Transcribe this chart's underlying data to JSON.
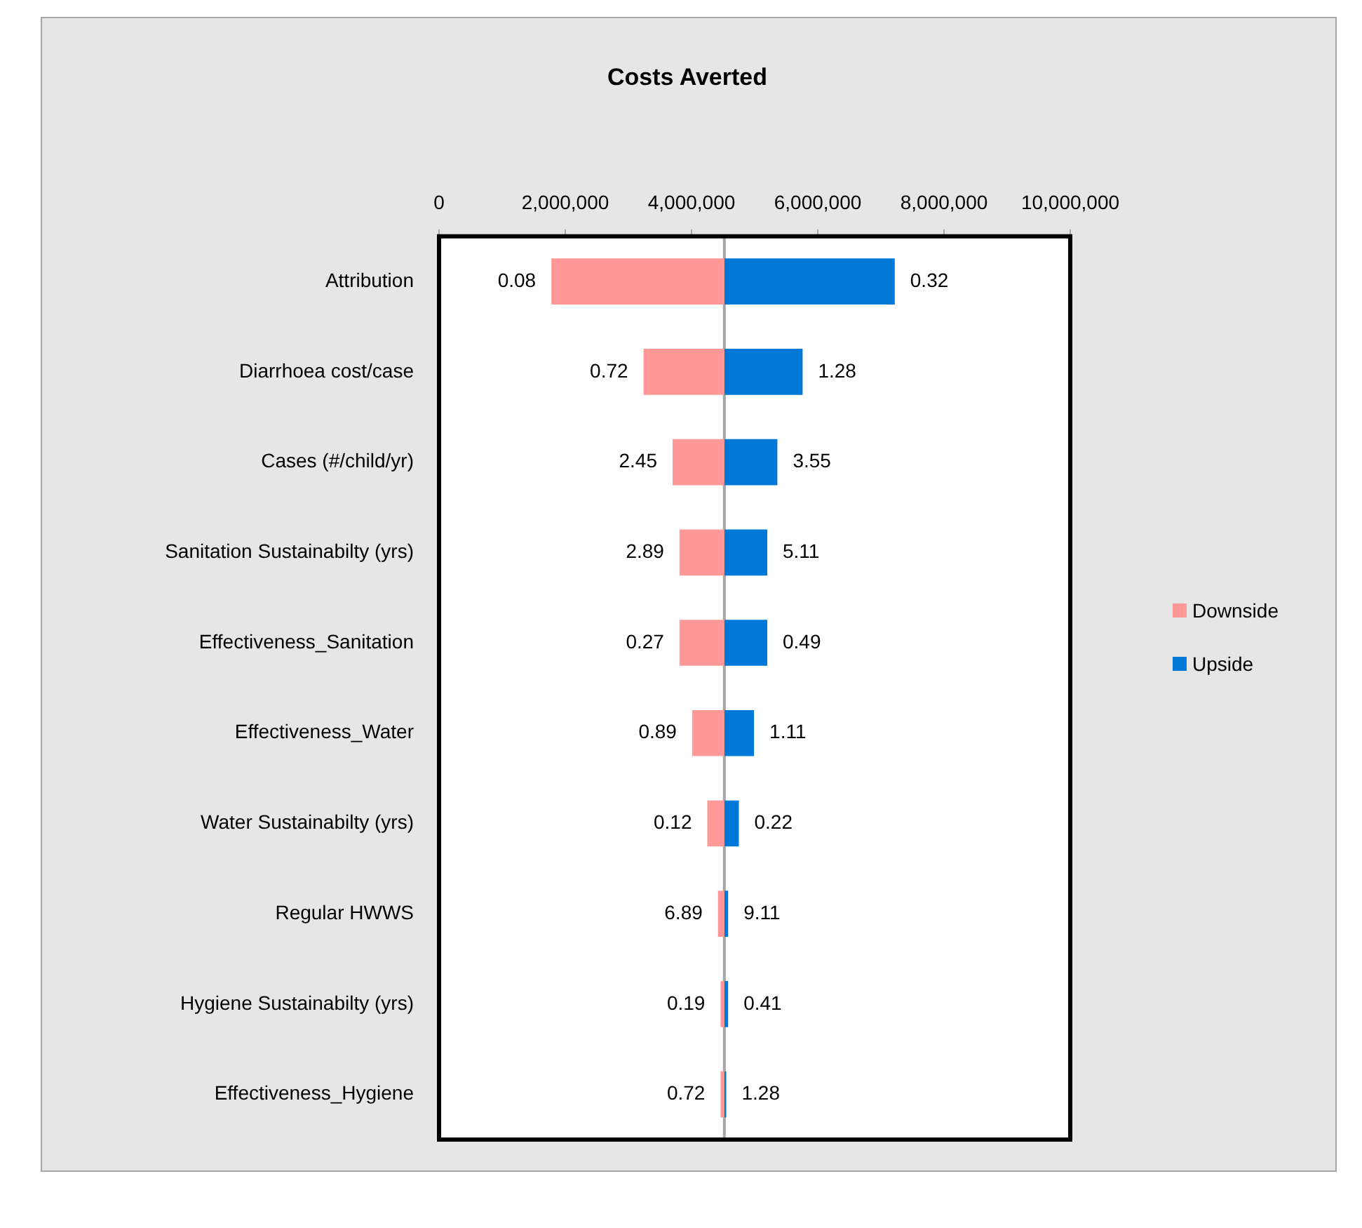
{
  "chart_data": {
    "type": "bar",
    "orientation": "horizontal",
    "title": "Costs Averted",
    "categories": [
      "Attribution",
      "Diarrhoea cost/case",
      "Cases (#/child/yr)",
      "Sanitation Sustainabilty (yrs)",
      "Effectiveness_Sanitation",
      "Effectiveness_Water",
      "Water Sustainabilty (yrs)",
      "Regular HWWS",
      "Hygiene Sustainabilty (yrs)",
      "Effectiveness_Hygiene"
    ],
    "series": [
      {
        "name": "Downside",
        "color": "#ff9896",
        "base": [
          1780000,
          3240000,
          3700000,
          3810000,
          3810000,
          4010000,
          4250000,
          4420000,
          4460000,
          4460000
        ],
        "values": [
          2740000,
          1280000,
          820000,
          710000,
          710000,
          510000,
          270000,
          100000,
          60000,
          60000
        ]
      },
      {
        "name": "Upside",
        "color": "#0078d7",
        "base": [
          4520000,
          4520000,
          4520000,
          4520000,
          4520000,
          4520000,
          4520000,
          4520000,
          4520000,
          4520000
        ],
        "values": [
          2700000,
          1240000,
          840000,
          680000,
          680000,
          470000,
          230000,
          60000,
          60000,
          30000
        ]
      }
    ],
    "annotations": [
      {
        "text": "0.08",
        "x": 1780000,
        "y": "Attribution"
      },
      {
        "text": "0.32",
        "x": 7220000,
        "y": "Attribution"
      },
      {
        "text": "0.72",
        "x": 3240000,
        "y": "Diarrhoea cost/case"
      },
      {
        "text": "1.28",
        "x": 5760000,
        "y": "Diarrhoea cost/case"
      },
      {
        "text": "2.45",
        "x": 3700000,
        "y": "Cases (#/child/yr)"
      },
      {
        "text": "3.55",
        "x": 5360000,
        "y": "Cases (#/child/yr)"
      },
      {
        "text": "2.89",
        "x": 3810000,
        "y": "Sanitation Sustainabilty (yrs)"
      },
      {
        "text": "5.11",
        "x": 5200000,
        "y": "Sanitation Sustainabilty (yrs)"
      },
      {
        "text": "0.27",
        "x": 3810000,
        "y": "Effectiveness_Sanitation"
      },
      {
        "text": "0.49",
        "x": 5200000,
        "y": "Effectiveness_Sanitation"
      },
      {
        "text": "0.89",
        "x": 4010000,
        "y": "Effectiveness_Water"
      },
      {
        "text": "1.11",
        "x": 4990000,
        "y": "Effectiveness_Water"
      },
      {
        "text": "0.12",
        "x": 4250000,
        "y": "Water Sustainabilty (yrs)"
      },
      {
        "text": "0.22",
        "x": 4750000,
        "y": "Water Sustainabilty (yrs)"
      },
      {
        "text": "6.89",
        "x": 4420000,
        "y": "Regular HWWS"
      },
      {
        "text": "9.11",
        "x": 4580000,
        "y": "Regular HWWS"
      },
      {
        "text": "0.19",
        "x": 4460000,
        "y": "Hygiene Sustainabilty (yrs)"
      },
      {
        "text": "0.41",
        "x": 4580000,
        "y": "Hygiene Sustainabilty (yrs)"
      },
      {
        "text": "0.72",
        "x": 4460000,
        "y": "Effectiveness_Hygiene"
      },
      {
        "text": "1.28",
        "x": 4550000,
        "y": "Effectiveness_Hygiene"
      }
    ],
    "xlim": [
      0,
      10000000
    ],
    "xticks": [
      0,
      {
        "value": 2000000,
        "label": "2,000,000"
      },
      {
        "value": 4000000,
        "label": "4,000,000"
      },
      {
        "value": 6000000,
        "label": "6,000,000"
      },
      {
        "value": 8000000,
        "label": "8,000,000"
      },
      {
        "value": 10000000,
        "label": "10,000,000"
      }
    ],
    "ref_lines": [
      {
        "axis": "x",
        "value": 4520000,
        "color": "#a6a6a6"
      }
    ],
    "legend": "right"
  }
}
